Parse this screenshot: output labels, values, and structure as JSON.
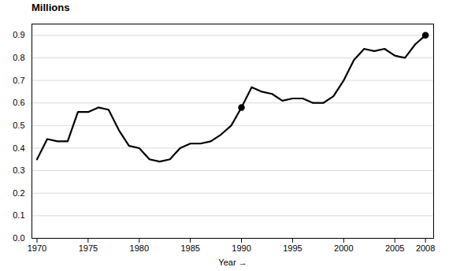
{
  "chart_data": {
    "type": "line",
    "x": [
      1970,
      1971,
      1972,
      1973,
      1974,
      1975,
      1976,
      1977,
      1978,
      1979,
      1980,
      1981,
      1982,
      1983,
      1984,
      1985,
      1986,
      1987,
      1988,
      1989,
      1990,
      1991,
      1992,
      1993,
      1994,
      1995,
      1996,
      1997,
      1998,
      1999,
      2000,
      2001,
      2002,
      2003,
      2004,
      2005,
      2006,
      2007,
      2008
    ],
    "values": [
      0.35,
      0.44,
      0.43,
      0.43,
      0.56,
      0.56,
      0.58,
      0.57,
      0.48,
      0.41,
      0.4,
      0.35,
      0.34,
      0.35,
      0.4,
      0.42,
      0.42,
      0.43,
      0.46,
      0.5,
      0.58,
      0.67,
      0.65,
      0.64,
      0.61,
      0.62,
      0.62,
      0.6,
      0.6,
      0.63,
      0.7,
      0.79,
      0.84,
      0.83,
      0.84,
      0.81,
      0.8,
      0.86,
      0.9
    ],
    "marked_points": [
      1990,
      2008
    ],
    "marker": "circle",
    "color": "#000000",
    "xlabel": "Year",
    "ylabel": "Millions",
    "xlim": [
      1969.5,
      2008.8
    ],
    "xticks": [
      1970,
      1975,
      1980,
      1985,
      1990,
      1995,
      2000,
      2005,
      2008
    ],
    "ylim": [
      0.0,
      0.95
    ],
    "yticks": [
      {
        "value": 0.0,
        "label": "0.0"
      },
      0.1,
      0.2,
      0.3,
      0.4,
      0.5,
      0.6,
      0.7,
      0.8,
      0.9
    ],
    "grid": true
  }
}
